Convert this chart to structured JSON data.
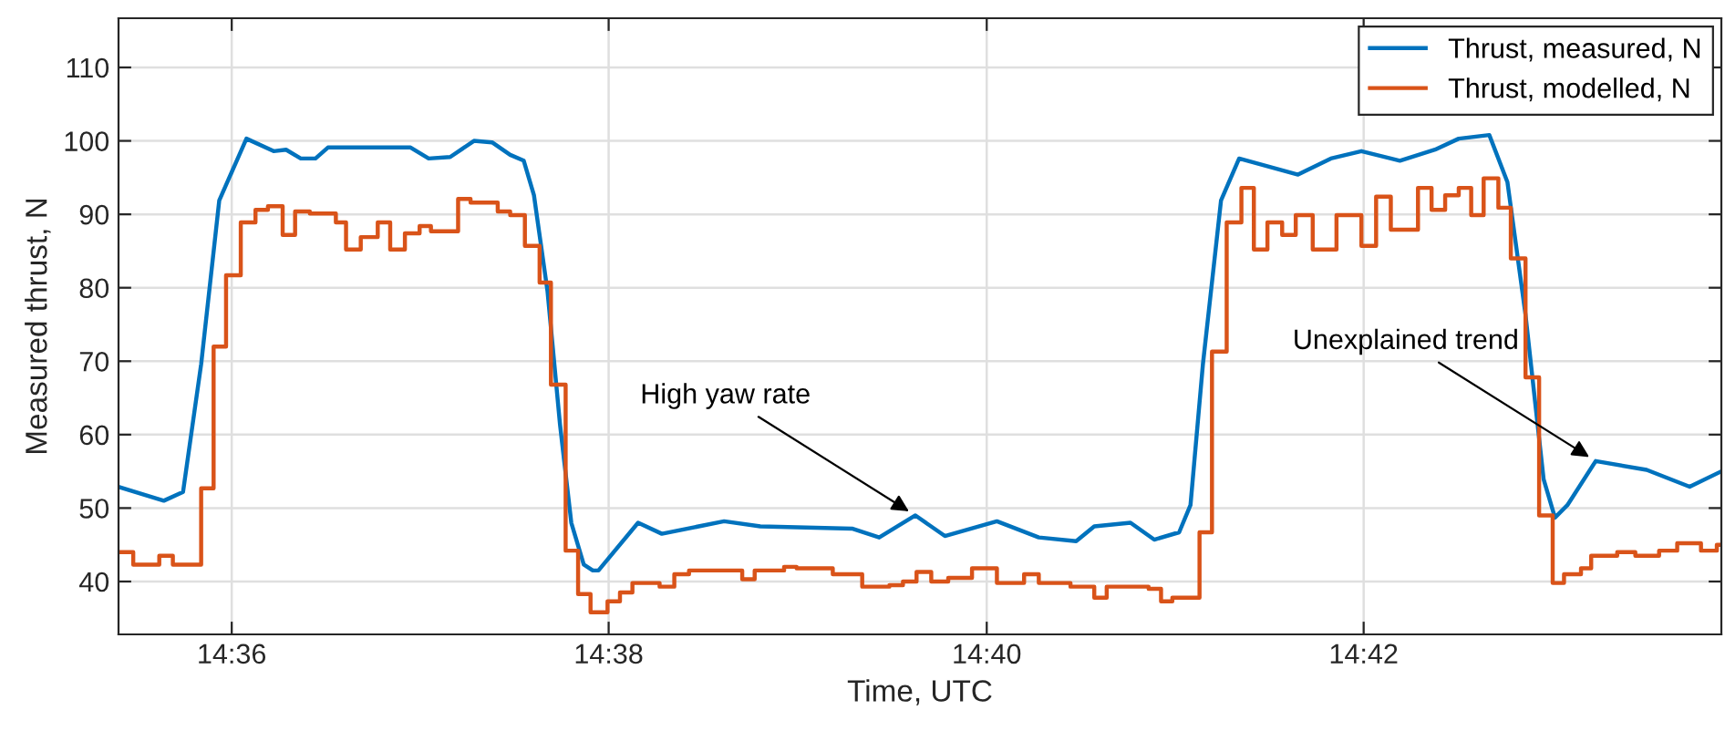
{
  "chart_data": {
    "type": "line",
    "xlabel": "Time, UTC",
    "ylabel": "Measured thrust, N",
    "xlim": [
      14.59,
      14.7316
    ],
    "ylim": [
      32.8,
      116.7
    ],
    "xticks": [
      {
        "value": 14.6,
        "label": "14:36"
      },
      {
        "value": 14.6333,
        "label": "14:38"
      },
      {
        "value": 14.6667,
        "label": "14:40"
      },
      {
        "value": 14.7,
        "label": "14:42"
      }
    ],
    "yticks": [
      40,
      50,
      60,
      70,
      80,
      90,
      100,
      110
    ],
    "grid": true,
    "legend": "top right",
    "series": [
      {
        "name": "Thrust, measured, N",
        "color": "#0072bd",
        "x": [
          14.59,
          14.594,
          14.5957,
          14.5973,
          14.5989,
          14.6013,
          14.6037,
          14.6048,
          14.6061,
          14.6074,
          14.6085,
          14.6134,
          14.6158,
          14.6174,
          14.6193,
          14.6214,
          14.623,
          14.6246,
          14.6258,
          14.6267,
          14.6279,
          14.629,
          14.63,
          14.6311,
          14.6319,
          14.6324,
          14.6359,
          14.638,
          14.6435,
          14.6467,
          14.6548,
          14.6572,
          14.6604,
          14.663,
          14.6676,
          14.6713,
          14.6746,
          14.6762,
          14.6794,
          14.6815,
          14.6837,
          14.6847,
          14.6858,
          14.6874,
          14.689,
          14.6942,
          14.6971,
          14.6998,
          14.7032,
          14.7063,
          14.7084,
          14.7111,
          14.7127,
          14.7143,
          14.7159,
          14.7169,
          14.718,
          14.7205,
          14.725,
          14.7288,
          14.7316
        ],
        "values": [
          52.9,
          51.0,
          52.2,
          69.6,
          91.9,
          100.3,
          98.6,
          98.8,
          97.6,
          97.6,
          99.1,
          99.1,
          99.1,
          97.6,
          97.8,
          100.0,
          99.8,
          98.1,
          97.3,
          92.6,
          79.5,
          61.4,
          48.0,
          42.3,
          41.5,
          41.5,
          48.0,
          46.5,
          48.2,
          47.5,
          47.2,
          46.0,
          49.0,
          46.2,
          48.2,
          46.0,
          45.5,
          47.5,
          48.0,
          45.7,
          46.7,
          50.4,
          69.6,
          91.9,
          97.6,
          95.4,
          97.6,
          98.6,
          97.3,
          98.8,
          100.3,
          100.8,
          94.4,
          76.3,
          53.9,
          48.7,
          50.4,
          56.4,
          55.2,
          52.9,
          55.0
        ]
      },
      {
        "name": "Thrust, modelled, N",
        "color": "#d95319",
        "type": "step",
        "x": [
          14.59,
          14.5913,
          14.5936,
          14.5948,
          14.5973,
          14.5984,
          14.5995,
          14.6008,
          14.6021,
          14.6032,
          14.6045,
          14.6056,
          14.6069,
          14.6092,
          14.6101,
          14.6114,
          14.6129,
          14.614,
          14.6153,
          14.6166,
          14.6176,
          14.62,
          14.6211,
          14.6235,
          14.6246,
          14.6259,
          14.6272,
          14.6282,
          14.6295,
          14.6306,
          14.6317,
          14.6332,
          14.6343,
          14.6354,
          14.6378,
          14.6391,
          14.6404,
          14.6451,
          14.6462,
          14.6488,
          14.6499,
          14.6531,
          14.6557,
          14.6581,
          14.6593,
          14.6605,
          14.6618,
          14.6633,
          14.6654,
          14.6676,
          14.67,
          14.6713,
          14.6741,
          14.6762,
          14.6773,
          14.681,
          14.6821,
          14.6831,
          14.6855,
          14.6866,
          14.6879,
          14.6892,
          14.6903,
          14.6915,
          14.6928,
          14.694,
          14.6955,
          14.6976,
          14.6998,
          14.7011,
          14.7024,
          14.7048,
          14.706,
          14.7072,
          14.7084,
          14.7095,
          14.7106,
          14.7119,
          14.713,
          14.7143,
          14.7155,
          14.7167,
          14.7177,
          14.7192,
          14.7201,
          14.7224,
          14.724,
          14.7261,
          14.7277,
          14.7298,
          14.7312,
          14.7316
        ],
        "values": [
          44.0,
          42.3,
          43.5,
          42.3,
          52.7,
          72.0,
          81.7,
          88.9,
          90.6,
          91.1,
          87.2,
          90.4,
          90.1,
          88.9,
          85.2,
          86.9,
          88.9,
          85.2,
          87.4,
          88.4,
          87.7,
          92.1,
          91.6,
          90.4,
          89.9,
          85.7,
          80.7,
          66.8,
          44.2,
          38.3,
          35.8,
          37.3,
          38.5,
          39.8,
          39.3,
          41.0,
          41.5,
          40.3,
          41.5,
          42.0,
          41.8,
          41.0,
          39.3,
          39.5,
          40.0,
          41.3,
          40.0,
          40.5,
          41.8,
          39.8,
          41.0,
          39.8,
          39.3,
          37.8,
          39.3,
          39.0,
          37.3,
          37.8,
          46.7,
          71.3,
          88.9,
          93.6,
          85.2,
          88.9,
          87.2,
          89.9,
          85.2,
          89.9,
          85.7,
          92.4,
          87.9,
          93.6,
          90.6,
          92.6,
          93.6,
          89.9,
          94.9,
          90.9,
          84.0,
          67.8,
          49.0,
          39.8,
          41.0,
          41.8,
          43.5,
          44.0,
          43.5,
          44.2,
          45.2,
          44.2,
          45.0,
          45.0
        ]
      }
    ],
    "annotations": [
      {
        "text": "High yaw rate",
        "x": 14.6604,
        "y": 49.0
      },
      {
        "text": "Unexplained trend",
        "x": 14.7205,
        "y": 56.4
      }
    ]
  }
}
